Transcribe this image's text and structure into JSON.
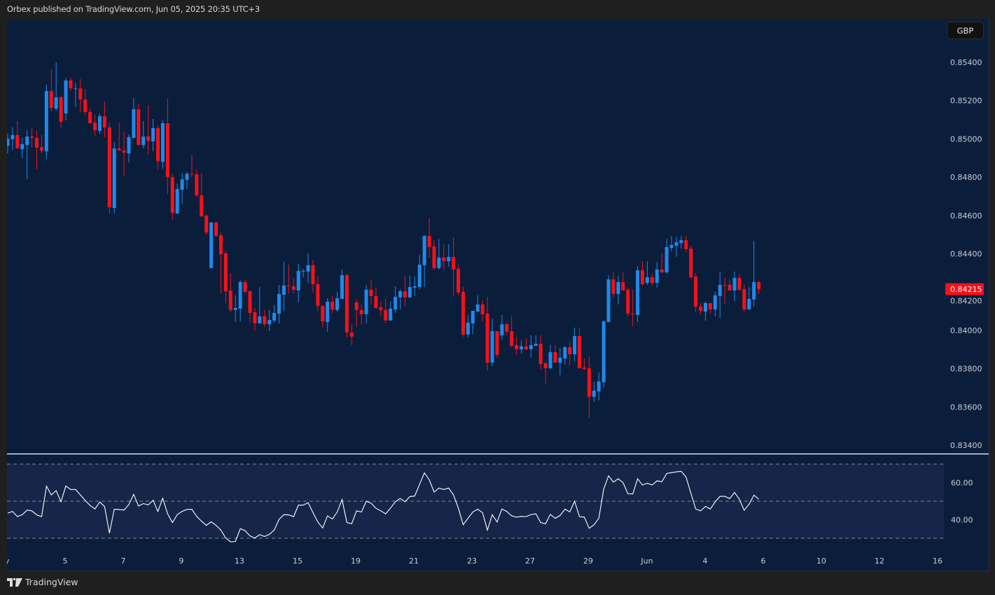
{
  "header": {
    "title": "Orbex published on TradingView.com, Jun 05, 2025 20:35 UTC+3"
  },
  "price_axis": {
    "currency_label": "GBP"
  },
  "footer": {
    "brand": "TradingView",
    "logo_text": "17"
  },
  "colors": {
    "background": "#0a1e3b",
    "rsi_band": "#172549",
    "up": "#2089ea",
    "down": "#f7101a",
    "rsi_line": "#ffffff",
    "last_price_badge": "#f7101a"
  },
  "chart_data": {
    "type": "candlestick",
    "ylim": [
      0.8335,
      0.8553
    ],
    "y_ticks": [
      "0.85400",
      "0.85200",
      "0.85000",
      "0.84800",
      "0.84600",
      "0.84400",
      "0.84200",
      "0.84000",
      "0.83800",
      "0.83600",
      "0.83400"
    ],
    "last_price": "0.84215",
    "x_ticks": [
      "May",
      "5",
      "7",
      "9",
      "13",
      "15",
      "19",
      "21",
      "23",
      "27",
      "29",
      "Jun",
      "4",
      "6",
      "10",
      "12",
      "16"
    ],
    "ohlc_fields": [
      "open",
      "high",
      "low",
      "close"
    ],
    "ohlc": [
      [
        0.84964,
        0.85027,
        0.84924,
        0.85001
      ],
      [
        0.84998,
        0.8506,
        0.84943,
        0.8502
      ],
      [
        0.8502,
        0.85093,
        0.8495,
        0.8495
      ],
      [
        0.84946,
        0.85005,
        0.84899,
        0.84972
      ],
      [
        0.84968,
        0.85045,
        0.84789,
        0.85012
      ],
      [
        0.85012,
        0.85056,
        0.84954,
        0.85005
      ],
      [
        0.85005,
        0.85042,
        0.84841,
        0.84954
      ],
      [
        0.84957,
        0.8502,
        0.84924,
        0.84939
      ],
      [
        0.84935,
        0.85283,
        0.84895,
        0.8525
      ],
      [
        0.8525,
        0.85363,
        0.85144,
        0.85162
      ],
      [
        0.85158,
        0.854,
        0.85147,
        0.85217
      ],
      [
        0.85217,
        0.85228,
        0.85056,
        0.85089
      ],
      [
        0.85133,
        0.85319,
        0.85096,
        0.85305
      ],
      [
        0.85305,
        0.85319,
        0.8525,
        0.85264
      ],
      [
        0.85261,
        0.85294,
        0.85166,
        0.85264
      ],
      [
        0.85264,
        0.85312,
        0.8514,
        0.85206
      ],
      [
        0.85206,
        0.85261,
        0.85122,
        0.8514
      ],
      [
        0.8514,
        0.85158,
        0.85078,
        0.85082
      ],
      [
        0.85085,
        0.85126,
        0.85016,
        0.85045
      ],
      [
        0.85042,
        0.85133,
        0.85027,
        0.85118
      ],
      [
        0.85118,
        0.85195,
        0.85009,
        0.8506
      ],
      [
        0.8506,
        0.85085,
        0.8461,
        0.84643
      ],
      [
        0.84639,
        0.84983,
        0.8461,
        0.8495
      ],
      [
        0.8495,
        0.85085,
        0.84939,
        0.84939
      ],
      [
        0.84939,
        0.85038,
        0.84808,
        0.84928
      ],
      [
        0.84924,
        0.85023,
        0.84877,
        0.85009
      ],
      [
        0.85005,
        0.85213,
        0.85005,
        0.85155
      ],
      [
        0.85155,
        0.85184,
        0.84968,
        0.84968
      ],
      [
        0.84968,
        0.85093,
        0.8495,
        0.85012
      ],
      [
        0.85012,
        0.85177,
        0.84921,
        0.8499
      ],
      [
        0.84987,
        0.85104,
        0.84935,
        0.85056
      ],
      [
        0.85056,
        0.85071,
        0.84841,
        0.84884
      ],
      [
        0.8488,
        0.851,
        0.84844,
        0.85082
      ],
      [
        0.85082,
        0.85213,
        0.84712,
        0.848
      ],
      [
        0.848,
        0.84818,
        0.84577,
        0.84614
      ],
      [
        0.8461,
        0.84767,
        0.84606,
        0.84738
      ],
      [
        0.84734,
        0.84822,
        0.84661,
        0.84789
      ],
      [
        0.84786,
        0.84829,
        0.84738,
        0.84818
      ],
      [
        0.84818,
        0.84917,
        0.848,
        0.84815
      ],
      [
        0.84815,
        0.8484,
        0.84694,
        0.84705
      ],
      [
        0.84705,
        0.84818,
        0.84595,
        0.84595
      ],
      [
        0.84599,
        0.84606,
        0.84497,
        0.84511
      ],
      [
        0.84325,
        0.84566,
        0.84325,
        0.84563
      ],
      [
        0.84563,
        0.8457,
        0.84489,
        0.84493
      ],
      [
        0.84497,
        0.84511,
        0.84193,
        0.84398
      ],
      [
        0.84402,
        0.84413,
        0.84142,
        0.84204
      ],
      [
        0.84208,
        0.84299,
        0.84095,
        0.84106
      ],
      [
        0.84106,
        0.84183,
        0.84043,
        0.84117
      ],
      [
        0.84113,
        0.84263,
        0.84047,
        0.84252
      ],
      [
        0.84252,
        0.84263,
        0.8419,
        0.84201
      ],
      [
        0.84204,
        0.84208,
        0.84043,
        0.84091
      ],
      [
        0.84095,
        0.84117,
        0.83996,
        0.84036
      ],
      [
        0.84036,
        0.84226,
        0.84036,
        0.84073
      ],
      [
        0.84073,
        0.84106,
        0.84018,
        0.84032
      ],
      [
        0.84032,
        0.84106,
        0.83996,
        0.84054
      ],
      [
        0.84051,
        0.84131,
        0.8404,
        0.84091
      ],
      [
        0.84087,
        0.84237,
        0.84036,
        0.8419
      ],
      [
        0.84186,
        0.84358,
        0.84102,
        0.84234
      ],
      [
        0.84234,
        0.84343,
        0.8419,
        0.8423
      ],
      [
        0.8423,
        0.84274,
        0.84193,
        0.84212
      ],
      [
        0.84208,
        0.84347,
        0.84146,
        0.8431
      ],
      [
        0.84307,
        0.84321,
        0.84277,
        0.8431
      ],
      [
        0.84307,
        0.84402,
        0.84248,
        0.8434
      ],
      [
        0.8434,
        0.84369,
        0.84197,
        0.84241
      ],
      [
        0.84241,
        0.84285,
        0.84098,
        0.84128
      ],
      [
        0.84128,
        0.84128,
        0.84014,
        0.84047
      ],
      [
        0.84043,
        0.84168,
        0.83992,
        0.8415
      ],
      [
        0.8415,
        0.84179,
        0.84087,
        0.84109
      ],
      [
        0.84106,
        0.84201,
        0.84098,
        0.84168
      ],
      [
        0.84164,
        0.84318,
        0.84164,
        0.84288
      ],
      [
        0.84288,
        0.84296,
        0.83963,
        0.83989
      ],
      [
        0.83989,
        0.84032,
        0.83923,
        0.83967
      ],
      [
        0.84146,
        0.84161,
        0.84018,
        0.84106
      ],
      [
        0.84106,
        0.84135,
        0.84032,
        0.84084
      ],
      [
        0.84084,
        0.84237,
        0.84036,
        0.84212
      ],
      [
        0.84212,
        0.84263,
        0.84135,
        0.84179
      ],
      [
        0.84179,
        0.84226,
        0.84113,
        0.84117
      ],
      [
        0.8412,
        0.8415,
        0.84076,
        0.84106
      ],
      [
        0.84106,
        0.84164,
        0.8404,
        0.84051
      ],
      [
        0.84051,
        0.8415,
        0.84051,
        0.84113
      ],
      [
        0.84109,
        0.8423,
        0.84091,
        0.84175
      ],
      [
        0.84172,
        0.84215,
        0.84109,
        0.84204
      ],
      [
        0.84204,
        0.84285,
        0.84124,
        0.84172
      ],
      [
        0.84172,
        0.84285,
        0.84168,
        0.84226
      ],
      [
        0.84223,
        0.84281,
        0.84179,
        0.8423
      ],
      [
        0.84226,
        0.84394,
        0.84215,
        0.84343
      ],
      [
        0.8434,
        0.84497,
        0.84226,
        0.84493
      ],
      [
        0.84493,
        0.84585,
        0.8438,
        0.84435
      ],
      [
        0.84438,
        0.84471,
        0.84314,
        0.84325
      ],
      [
        0.84325,
        0.84478,
        0.84318,
        0.8438
      ],
      [
        0.8438,
        0.84449,
        0.84318,
        0.84361
      ],
      [
        0.84361,
        0.84449,
        0.84332,
        0.84383
      ],
      [
        0.84383,
        0.84486,
        0.84183,
        0.84318
      ],
      [
        0.84321,
        0.84343,
        0.84183,
        0.84197
      ],
      [
        0.84201,
        0.84226,
        0.83967,
        0.83978
      ],
      [
        0.83978,
        0.8408,
        0.83963,
        0.8404
      ],
      [
        0.84036,
        0.84102,
        0.83981,
        0.84102
      ],
      [
        0.84098,
        0.84183,
        0.84095,
        0.84135
      ],
      [
        0.84135,
        0.84157,
        0.84047,
        0.84084
      ],
      [
        0.84087,
        0.84175,
        0.83788,
        0.83831
      ],
      [
        0.83831,
        0.84062,
        0.83813,
        0.83996
      ],
      [
        0.83996,
        0.83996,
        0.83857,
        0.83872
      ],
      [
        0.83974,
        0.8408,
        0.83952,
        0.84032
      ],
      [
        0.84032,
        0.8404,
        0.83974,
        0.83992
      ],
      [
        0.83996,
        0.84073,
        0.83912,
        0.83919
      ],
      [
        0.83923,
        0.83963,
        0.83872,
        0.83901
      ],
      [
        0.83901,
        0.83948,
        0.83879,
        0.83916
      ],
      [
        0.83916,
        0.83959,
        0.83897,
        0.83901
      ],
      [
        0.83901,
        0.83974,
        0.83857,
        0.83923
      ],
      [
        0.83919,
        0.83974,
        0.83919,
        0.8393
      ],
      [
        0.8393,
        0.83974,
        0.83795,
        0.83824
      ],
      [
        0.83828,
        0.83835,
        0.83722,
        0.83802
      ],
      [
        0.83802,
        0.83923,
        0.83795,
        0.83886
      ],
      [
        0.83886,
        0.83923,
        0.83831,
        0.83831
      ],
      [
        0.83831,
        0.83908,
        0.83765,
        0.83857
      ],
      [
        0.83853,
        0.83916,
        0.8382,
        0.83912
      ],
      [
        0.83912,
        0.83941,
        0.83817,
        0.83875
      ],
      [
        0.83875,
        0.84014,
        0.83839,
        0.8397
      ],
      [
        0.8397,
        0.84011,
        0.83802,
        0.83802
      ],
      [
        0.83806,
        0.83853,
        0.83791,
        0.83798
      ],
      [
        0.83802,
        0.83864,
        0.83543,
        0.83652
      ],
      [
        0.83652,
        0.83733,
        0.83627,
        0.83685
      ],
      [
        0.83681,
        0.8378,
        0.83634,
        0.83733
      ],
      [
        0.83729,
        0.84051,
        0.837,
        0.84047
      ],
      [
        0.84043,
        0.84288,
        0.84043,
        0.84266
      ],
      [
        0.84266,
        0.84307,
        0.84172,
        0.8419
      ],
      [
        0.8419,
        0.84285,
        0.84135,
        0.84252
      ],
      [
        0.84252,
        0.84303,
        0.84208,
        0.84208
      ],
      [
        0.84212,
        0.84223,
        0.84073,
        0.84087
      ],
      [
        0.84087,
        0.84212,
        0.84022,
        0.84084
      ],
      [
        0.8408,
        0.84336,
        0.84043,
        0.84314
      ],
      [
        0.84314,
        0.84361,
        0.84234,
        0.84241
      ],
      [
        0.84248,
        0.84361,
        0.84237,
        0.84277
      ],
      [
        0.84277,
        0.84296,
        0.84234,
        0.84248
      ],
      [
        0.84248,
        0.84358,
        0.84223,
        0.84318
      ],
      [
        0.84318,
        0.84402,
        0.84299,
        0.84303
      ],
      [
        0.84303,
        0.84478,
        0.84296,
        0.84435
      ],
      [
        0.84431,
        0.84493,
        0.84413,
        0.84446
      ],
      [
        0.84442,
        0.84489,
        0.84383,
        0.8446
      ],
      [
        0.84456,
        0.84493,
        0.84427,
        0.84471
      ],
      [
        0.84471,
        0.84493,
        0.84409,
        0.84424
      ],
      [
        0.84427,
        0.84442,
        0.8427,
        0.84277
      ],
      [
        0.84281,
        0.84299,
        0.84095,
        0.84124
      ],
      [
        0.84124,
        0.84142,
        0.84084,
        0.84102
      ],
      [
        0.84098,
        0.8415,
        0.84051,
        0.84142
      ],
      [
        0.84142,
        0.84142,
        0.84087,
        0.84109
      ],
      [
        0.84109,
        0.84201,
        0.84073,
        0.84183
      ],
      [
        0.84179,
        0.84307,
        0.84065,
        0.84237
      ],
      [
        0.84237,
        0.84274,
        0.84139,
        0.84234
      ],
      [
        0.84237,
        0.84266,
        0.84208,
        0.84208
      ],
      [
        0.84208,
        0.84307,
        0.84153,
        0.84274
      ],
      [
        0.84274,
        0.84292,
        0.84204,
        0.84212
      ],
      [
        0.84215,
        0.84237,
        0.84098,
        0.84109
      ],
      [
        0.84109,
        0.84226,
        0.84109,
        0.84164
      ],
      [
        0.84161,
        0.84467,
        0.84124,
        0.84252
      ],
      [
        0.84252,
        0.84259,
        0.8419,
        0.84215
      ]
    ],
    "rsi": {
      "levels": [
        30,
        50,
        70
      ],
      "ylim": [
        25,
        75
      ],
      "y_ticks": [
        "60.00",
        "40.00"
      ],
      "values": [
        43.6,
        44.5,
        41.7,
        42.7,
        45.2,
        44.8,
        42.6,
        41.7,
        58.1,
        53.4,
        55.7,
        49.7,
        58.2,
        56.3,
        56.3,
        53.4,
        50.4,
        47.7,
        45.8,
        49.6,
        47.1,
        32.8,
        45.7,
        45.5,
        45.2,
        48.2,
        53.7,
        47.4,
        48.7,
        48.0,
        50.5,
        44.5,
        51.6,
        43.2,
        38.5,
        42.8,
        44.5,
        45.6,
        45.6,
        41.8,
        39.2,
        37.0,
        38.9,
        37.0,
        34.4,
        30.1,
        28.1,
        28.3,
        35.2,
        34.1,
        31.3,
        30.1,
        32.0,
        31.0,
        32.1,
        34.4,
        40.2,
        42.7,
        42.6,
        41.7,
        47.9,
        47.9,
        49.2,
        43.8,
        38.8,
        35.6,
        42.1,
        40.4,
        44.2,
        50.9,
        38.5,
        37.9,
        44.8,
        44.2,
        50.0,
        48.9,
        46.2,
        44.8,
        43.2,
        46.3,
        49.7,
        51.5,
        49.7,
        52.5,
        52.8,
        59.0,
        65.3,
        61.5,
        54.9,
        57.1,
        56.3,
        57.1,
        53.4,
        46.3,
        37.3,
        40.8,
        44.2,
        45.7,
        43.8,
        34.4,
        42.7,
        38.8,
        45.8,
        44.5,
        42.1,
        41.4,
        41.8,
        41.7,
        42.8,
        43.2,
        38.5,
        37.8,
        42.9,
        40.8,
        42.3,
        45.7,
        44.2,
        50.0,
        41.7,
        41.4,
        35.4,
        37.3,
        40.8,
        56.6,
        63.7,
        60.3,
        62.1,
        60.0,
        54.0,
        53.9,
        62.1,
        58.7,
        59.7,
        58.7,
        61.0,
        60.5,
        64.9,
        65.4,
        65.8,
        66.1,
        63.0,
        54.3,
        45.8,
        44.8,
        47.2,
        45.8,
        49.6,
        52.6,
        52.6,
        51.4,
        54.7,
        51.1,
        45.1,
        48.4,
        53.3,
        51.1
      ]
    }
  }
}
